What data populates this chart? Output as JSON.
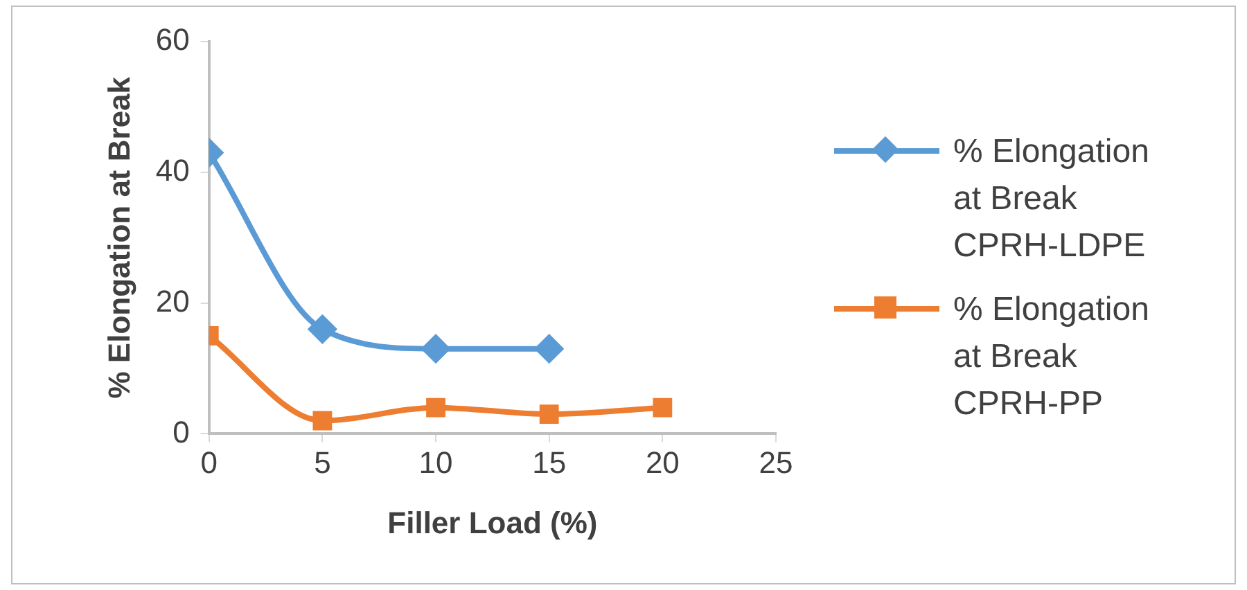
{
  "chart_data": {
    "type": "line",
    "xlabel": "Filler Load (%)",
    "ylabel": "% Elongation at Break",
    "xlim": [
      0,
      25
    ],
    "xticks": [
      0,
      5,
      10,
      15,
      20,
      25
    ],
    "ylim": [
      0,
      60
    ],
    "yticks": [
      0,
      20,
      40,
      60
    ],
    "grid": false,
    "legend": "right",
    "line_style": "solid",
    "series": [
      {
        "name": "% Elongation at Break CPRH-LDPE",
        "color": "#5b9bd5",
        "marker": "diamond",
        "x": [
          0,
          5,
          10,
          15
        ],
        "values": [
          43,
          16,
          13,
          13
        ]
      },
      {
        "name": "% Elongation at Break CPRH-PP",
        "color": "#ed7d31",
        "marker": "square",
        "x": [
          0,
          5,
          10,
          15,
          20
        ],
        "values": [
          15,
          2,
          4,
          3,
          4
        ]
      }
    ]
  }
}
